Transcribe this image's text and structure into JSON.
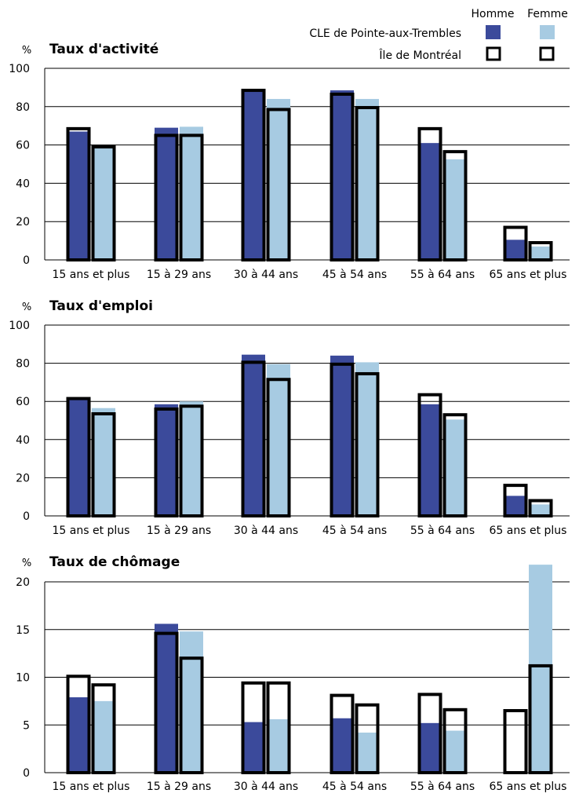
{
  "legend": {
    "col_homme": "Homme",
    "col_femme": "Femme",
    "row_cle": "CLE de Pointe-aux-Trembles",
    "row_mtl": "Île de Montréal"
  },
  "colors": {
    "homme": "#3b4a9b",
    "femme": "#a7cbe2",
    "outline": "#000000",
    "grid": "#000000"
  },
  "chart_data": [
    {
      "type": "bar",
      "title": "Taux d'activité",
      "ylabel": "%",
      "ylim": [
        0,
        100
      ],
      "yticks": [
        0,
        20,
        40,
        60,
        80,
        100
      ],
      "categories": [
        "15 ans et plus",
        "15 à 29 ans",
        "30 à 44 ans",
        "45 à 54 ans",
        "55 à 64 ans",
        "65 ans et plus"
      ],
      "series": [
        {
          "name": "CLE de Pointe-aux-Trembles Homme",
          "values": [
            67,
            69,
            88,
            88.5,
            61,
            10.5
          ]
        },
        {
          "name": "CLE de Pointe-aux-Trembles Femme",
          "values": [
            59,
            69.5,
            84,
            84,
            52.5,
            7
          ]
        },
        {
          "name": "Île de Montréal Homme",
          "values": [
            68.5,
            65,
            88.5,
            86.5,
            68.5,
            17
          ]
        },
        {
          "name": "Île de Montréal Femme",
          "values": [
            59,
            65,
            78.5,
            79.5,
            56.5,
            9
          ]
        }
      ]
    },
    {
      "type": "bar",
      "title": "Taux d'emploi",
      "ylabel": "%",
      "ylim": [
        0,
        100
      ],
      "yticks": [
        0,
        20,
        40,
        60,
        80,
        100
      ],
      "categories": [
        "15 ans et plus",
        "15 à 29 ans",
        "30 à 44 ans",
        "45 à 54 ans",
        "55 à 64 ans",
        "65 ans et plus"
      ],
      "series": [
        {
          "name": "CLE de Pointe-aux-Trembles Homme",
          "values": [
            61.5,
            58.5,
            84.5,
            84,
            58.5,
            10.5
          ]
        },
        {
          "name": "CLE de Pointe-aux-Trembles Femme",
          "values": [
            56.5,
            60,
            79.5,
            80.5,
            50.5,
            6
          ]
        },
        {
          "name": "Île de Montréal Homme",
          "values": [
            61.5,
            56,
            80.5,
            79.5,
            63.5,
            16
          ]
        },
        {
          "name": "Île de Montréal Femme",
          "values": [
            53.5,
            57.5,
            71.5,
            74.5,
            53,
            8
          ]
        }
      ]
    },
    {
      "type": "bar",
      "title": "Taux de chômage",
      "ylabel": "%",
      "ylim": [
        0,
        20
      ],
      "yticks": [
        0,
        5,
        10,
        15,
        20
      ],
      "categories": [
        "15 ans et plus",
        "15 à 29 ans",
        "30 à 44 ans",
        "45 à 54 ans",
        "55 à 64 ans",
        "65 ans et plus"
      ],
      "series": [
        {
          "name": "CLE de Pointe-aux-Trembles Homme",
          "values": [
            7.9,
            15.6,
            5.3,
            5.7,
            5.2,
            0
          ]
        },
        {
          "name": "CLE de Pointe-aux-Trembles Femme",
          "values": [
            7.5,
            14.8,
            5.6,
            4.2,
            4.4,
            21.8
          ]
        },
        {
          "name": "Île de Montréal Homme",
          "values": [
            10.1,
            14.6,
            9.4,
            8.1,
            8.2,
            6.5
          ]
        },
        {
          "name": "Île de Montréal Femme",
          "values": [
            9.2,
            12,
            9.4,
            7.1,
            6.6,
            11.2
          ]
        }
      ]
    }
  ]
}
